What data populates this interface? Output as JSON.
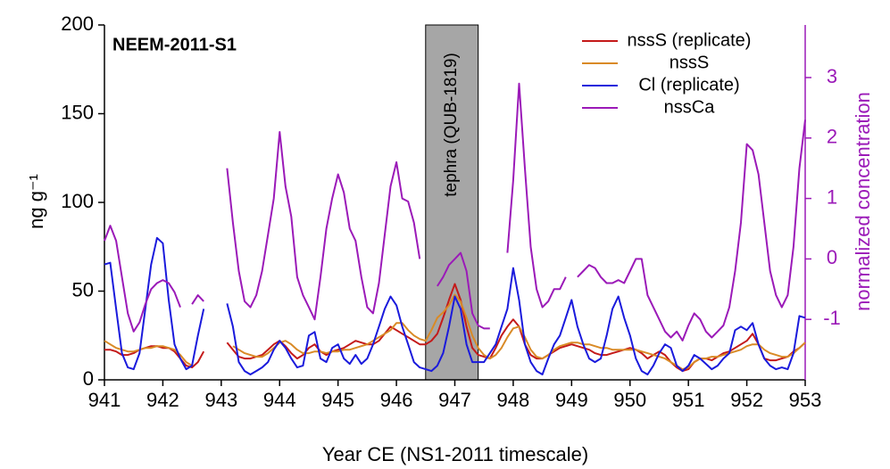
{
  "chart_data": {
    "type": "line",
    "annotation": "NEEM-2011-S1",
    "x_label": "Year CE (NS1-2011 timescale)",
    "y_label": "ng g⁻¹",
    "y2_label": "normalized concentration",
    "y2_color": "#9b1ab8",
    "shaded_region": {
      "x": [
        946.5,
        947.4
      ],
      "label": "tephra (QUB-1819)",
      "color": "#a6a6a6"
    },
    "legend": "top-right",
    "xlim": [
      941,
      953
    ],
    "xticks": [
      941,
      942,
      943,
      944,
      945,
      946,
      947,
      948,
      949,
      950,
      951,
      952,
      953
    ],
    "ylim": [
      0,
      200
    ],
    "yticks": [
      0,
      50,
      100,
      150,
      200
    ],
    "y2lim": [
      -2,
      3.87
    ],
    "y2ticks": [
      -1,
      0,
      1,
      2,
      3
    ],
    "x": [
      941,
      941.1,
      941.2,
      941.3,
      941.4,
      941.5,
      941.6,
      941.7,
      941.8,
      941.9,
      942,
      942.1,
      942.2,
      942.3,
      942.4,
      942.5,
      942.6,
      942.7,
      942.8,
      942.9,
      943,
      943.1,
      943.2,
      943.3,
      943.4,
      943.5,
      943.6,
      943.7,
      943.8,
      943.9,
      944,
      944.1,
      944.2,
      944.3,
      944.4,
      944.5,
      944.6,
      944.7,
      944.8,
      944.9,
      945,
      945.1,
      945.2,
      945.3,
      945.4,
      945.5,
      945.6,
      945.7,
      945.8,
      945.9,
      946,
      946.1,
      946.2,
      946.3,
      946.4,
      946.5,
      946.6,
      946.7,
      946.8,
      946.9,
      947,
      947.1,
      947.2,
      947.3,
      947.4,
      947.5,
      947.6,
      947.7,
      947.8,
      947.9,
      948,
      948.1,
      948.2,
      948.3,
      948.4,
      948.5,
      948.6,
      948.7,
      948.8,
      948.9,
      949,
      949.1,
      949.2,
      949.3,
      949.4,
      949.5,
      949.6,
      949.7,
      949.8,
      949.9,
      950,
      950.1,
      950.2,
      950.3,
      950.4,
      950.5,
      950.6,
      950.7,
      950.8,
      950.9,
      951,
      951.1,
      951.2,
      951.3,
      951.4,
      951.5,
      951.6,
      951.7,
      951.8,
      951.9,
      952,
      952.1,
      952.2,
      952.3,
      952.4,
      952.5,
      952.6,
      952.7,
      952.8,
      952.9,
      953
    ],
    "series": [
      {
        "name": "nssS (replicate)",
        "color": "#c41a1a",
        "values": [
          17,
          17,
          16,
          14,
          14,
          15,
          17,
          18,
          19,
          19,
          18,
          18,
          16,
          12,
          8,
          7,
          10,
          16,
          null,
          null,
          null,
          21,
          17,
          13,
          12,
          12,
          13,
          14,
          17,
          20,
          22,
          19,
          15,
          12,
          14,
          18,
          20,
          16,
          14,
          16,
          17,
          18,
          20,
          22,
          21,
          20,
          20,
          22,
          26,
          30,
          28,
          26,
          24,
          22,
          20,
          20,
          22,
          26,
          35,
          45,
          54,
          45,
          30,
          18,
          14,
          13,
          12,
          18,
          25,
          30,
          34,
          30,
          20,
          14,
          12,
          12,
          14,
          16,
          18,
          19,
          20,
          19,
          18,
          17,
          15,
          14,
          14,
          15,
          16,
          17,
          18,
          17,
          15,
          12,
          14,
          16,
          14,
          10,
          7,
          5,
          6,
          10,
          12,
          12,
          11,
          13,
          15,
          16,
          18,
          20,
          22,
          26,
          20,
          12,
          11,
          11,
          12,
          13,
          16,
          18,
          21
        ]
      },
      {
        "name": "nssS",
        "color": "#d98a26",
        "values": [
          22,
          20,
          18,
          17,
          16,
          16,
          17,
          18,
          18,
          19,
          19,
          18,
          17,
          14,
          10,
          8,
          null,
          null,
          null,
          null,
          null,
          null,
          19,
          17,
          15,
          14,
          13,
          13,
          15,
          18,
          21,
          22,
          20,
          17,
          15,
          15,
          16,
          16,
          15,
          16,
          16,
          17,
          17,
          18,
          19,
          20,
          22,
          24,
          26,
          28,
          32,
          32,
          28,
          25,
          23,
          22,
          28,
          35,
          38,
          42,
          48,
          44,
          35,
          25,
          18,
          14,
          12,
          14,
          18,
          24,
          29,
          30,
          24,
          17,
          13,
          12,
          14,
          17,
          19,
          20,
          21,
          21,
          20,
          20,
          19,
          18,
          18,
          17,
          17,
          17,
          17,
          17,
          16,
          15,
          14,
          13,
          12,
          10,
          8,
          6,
          7,
          10,
          12,
          12,
          13,
          13,
          14,
          15,
          16,
          17,
          19,
          20,
          20,
          17,
          15,
          14,
          13,
          13,
          15,
          18,
          21
        ]
      },
      {
        "name": "Cl (replicate)",
        "color": "#1a1adc",
        "values": [
          65,
          66,
          40,
          15,
          7,
          6,
          15,
          40,
          65,
          80,
          77,
          45,
          20,
          12,
          6,
          8,
          25,
          40,
          null,
          null,
          null,
          43,
          30,
          10,
          5,
          3,
          5,
          7,
          10,
          17,
          22,
          18,
          12,
          7,
          8,
          25,
          27,
          12,
          10,
          18,
          20,
          12,
          9,
          14,
          9,
          12,
          20,
          30,
          40,
          47,
          42,
          30,
          20,
          10,
          7,
          6,
          5,
          8,
          15,
          30,
          47,
          40,
          20,
          10,
          10,
          10,
          15,
          20,
          30,
          40,
          63,
          45,
          20,
          10,
          5,
          3,
          12,
          20,
          25,
          35,
          45,
          30,
          20,
          12,
          10,
          12,
          25,
          40,
          47,
          35,
          25,
          12,
          5,
          3,
          8,
          15,
          20,
          18,
          8,
          5,
          8,
          14,
          12,
          9,
          6,
          8,
          12,
          15,
          28,
          30,
          28,
          32,
          20,
          12,
          8,
          6,
          7,
          6,
          15,
          36,
          35
        ]
      },
      {
        "name": "nssCa",
        "color": "#9b1ab8",
        "axis": "y2",
        "values": [
          0.3,
          0.55,
          0.3,
          -0.3,
          -0.9,
          -1.2,
          -1.05,
          -0.75,
          -0.5,
          -0.4,
          -0.35,
          -0.4,
          -0.55,
          -0.8,
          null,
          -0.75,
          -0.6,
          -0.7,
          null,
          null,
          null,
          1.5,
          0.6,
          -0.2,
          -0.7,
          -0.8,
          -0.6,
          -0.2,
          0.4,
          1.0,
          2.1,
          1.2,
          0.7,
          -0.3,
          -0.6,
          -0.8,
          -1.0,
          -0.3,
          0.5,
          1.0,
          1.4,
          1.1,
          0.5,
          0.3,
          -0.3,
          -0.8,
          -0.9,
          -0.4,
          0.4,
          1.2,
          1.6,
          1.0,
          0.95,
          0.6,
          0.0,
          null,
          null,
          -0.45,
          -0.3,
          -0.1,
          0.0,
          0.1,
          -0.2,
          -0.9,
          -1.1,
          -1.15,
          -1.15,
          null,
          null,
          0.1,
          1.3,
          2.9,
          1.5,
          0.2,
          -0.5,
          -0.8,
          -0.7,
          -0.5,
          -0.5,
          -0.3,
          null,
          -0.3,
          -0.2,
          -0.1,
          -0.15,
          -0.3,
          -0.4,
          -0.4,
          -0.35,
          -0.4,
          -0.2,
          0.0,
          0.0,
          -0.6,
          -0.8,
          -1.0,
          -1.2,
          -1.3,
          -1.2,
          -1.35,
          -1.1,
          -0.9,
          -1.0,
          -1.2,
          -1.3,
          -1.2,
          -1.1,
          -0.8,
          -0.2,
          0.6,
          1.9,
          1.8,
          1.4,
          0.6,
          -0.2,
          -0.6,
          -0.8,
          -0.6,
          0.2,
          1.5,
          2.3
        ]
      }
    ]
  }
}
